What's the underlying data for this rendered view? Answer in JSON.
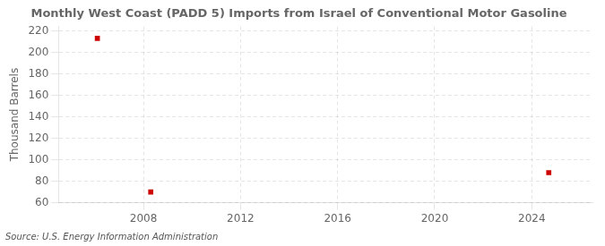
{
  "chart_data": {
    "type": "scatter",
    "title": "Monthly West Coast (PADD 5) Imports from Israel of Conventional Motor Gasoline",
    "ylabel": "Thousand Barrels",
    "annotation": "Source: U.S. Energy Information Administration",
    "x": [
      2006.1,
      2008.3,
      2024.7
    ],
    "values": [
      213,
      70,
      88
    ],
    "color": "#cc0000",
    "marker": "square",
    "xlim": [
      2004.5,
      2026.5
    ],
    "xticks": [
      2008,
      2012,
      2016,
      2020,
      2024
    ],
    "ylim": [
      60,
      224
    ],
    "yticks": [
      60,
      80,
      100,
      120,
      140,
      160,
      180,
      200,
      220
    ],
    "grid": true
  }
}
